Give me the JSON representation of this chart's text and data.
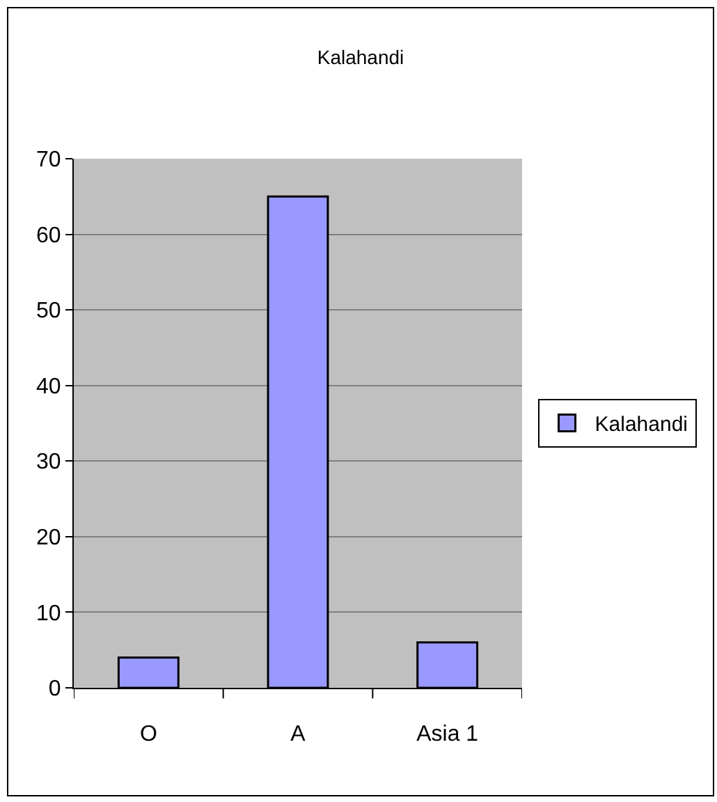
{
  "chart_data": {
    "type": "bar",
    "title": "Kalahandi",
    "categories": [
      "O",
      "A",
      "Asia 1"
    ],
    "series": [
      {
        "name": "Kalahandi",
        "color": "#9999ff",
        "values": [
          4,
          65,
          6
        ]
      }
    ],
    "ylim": [
      0,
      70
    ],
    "yticks": [
      0,
      10,
      20,
      30,
      40,
      50,
      60,
      70
    ],
    "grid": "y",
    "legend": "right"
  }
}
